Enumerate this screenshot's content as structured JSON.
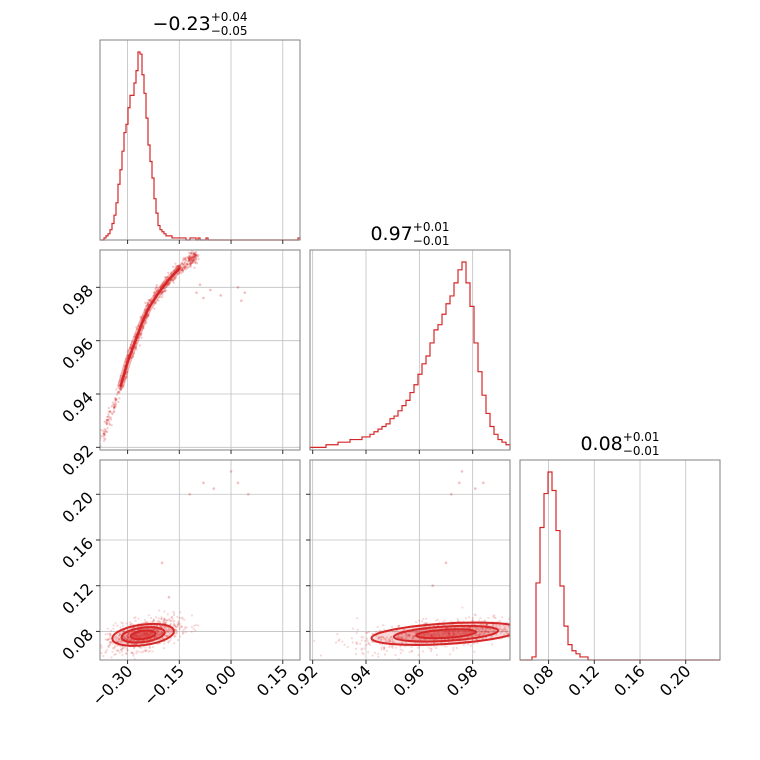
{
  "chart_data": {
    "type": "corner",
    "color": "#d62728",
    "grid": true,
    "titles": [
      {
        "main": "−0.23",
        "sup": "+0.04",
        "sub": "−0.05"
      },
      {
        "main": "0.97",
        "sup": "+0.01",
        "sub": "−0.01"
      },
      {
        "main": "0.08",
        "sup": "+0.01",
        "sub": "−0.01"
      }
    ],
    "params": [
      {
        "range": [
          -0.38,
          0.2
        ],
        "ticks": [
          -0.3,
          -0.15,
          0.0,
          0.15
        ],
        "tick_labels": [
          "−0.30",
          "−0.15",
          "0.00",
          "0.15"
        ]
      },
      {
        "range": [
          0.919,
          0.994
        ],
        "ticks": [
          0.92,
          0.94,
          0.96,
          0.98
        ],
        "tick_labels": [
          "0.92",
          "0.94",
          "0.96",
          "0.98"
        ]
      },
      {
        "range": [
          0.055,
          0.23
        ],
        "ticks": [
          0.08,
          0.12,
          0.16,
          0.2
        ],
        "tick_labels": [
          "0.08",
          "0.12",
          "0.16",
          "0.20"
        ]
      }
    ],
    "histograms": [
      {
        "edges_start": -0.38,
        "bin_width": 0.0058,
        "counts": [
          0,
          0,
          1,
          2,
          3,
          5,
          8,
          12,
          18,
          27,
          34,
          43,
          52,
          56,
          64,
          70,
          70,
          76,
          82,
          91,
          90,
          80,
          71,
          59,
          46,
          38,
          30,
          20,
          13,
          7,
          5,
          4,
          3,
          2,
          2,
          2,
          1,
          1,
          1,
          1,
          1,
          1,
          1,
          0,
          0,
          1,
          1,
          1,
          0,
          1,
          0,
          0,
          0,
          1,
          0,
          0,
          0,
          0,
          0,
          0,
          0,
          0,
          0,
          0,
          0,
          0,
          0,
          0,
          0,
          0,
          0,
          0,
          0,
          0,
          0,
          0,
          0,
          0,
          0,
          0,
          0,
          0,
          0,
          0,
          0,
          0,
          0,
          0,
          0,
          0,
          0,
          0,
          0,
          0,
          0,
          0,
          0,
          0,
          0,
          1
        ]
      },
      {
        "edges_start": 0.919,
        "bin_width": 0.0015,
        "counts": [
          1,
          1,
          1,
          1,
          2,
          2,
          2,
          3,
          3,
          3,
          4,
          4,
          4,
          5,
          5,
          6,
          7,
          8,
          9,
          10,
          12,
          13,
          15,
          17,
          19,
          22,
          25,
          29,
          33,
          36,
          41,
          46,
          48,
          52,
          56,
          59,
          64,
          69,
          72,
          64,
          55,
          41,
          30,
          21,
          14,
          9,
          6,
          4,
          3,
          2
        ]
      },
      {
        "edges_start": 0.055,
        "bin_width": 0.0035,
        "counts": [
          0,
          0,
          0,
          1,
          25,
          43,
          54,
          61,
          55,
          42,
          24,
          11,
          5,
          3,
          2,
          1,
          1,
          0,
          0,
          0,
          0,
          0,
          0,
          0,
          0,
          0,
          0,
          0,
          0,
          0,
          0,
          0,
          0,
          0,
          0,
          0,
          0,
          0,
          0,
          0,
          0,
          0,
          0,
          0,
          0,
          0,
          0,
          0,
          0,
          0
        ]
      }
    ],
    "pairs": [
      {
        "x": 0,
        "y": 1,
        "outliers": [
          [
            -0.09,
            0.981
          ],
          [
            -0.06,
            0.979
          ],
          [
            -0.03,
            0.977
          ],
          [
            0.02,
            0.98
          ],
          [
            0.04,
            0.978
          ],
          [
            -0.1,
            0.978
          ],
          [
            -0.08,
            0.976
          ],
          [
            0.03,
            0.975
          ]
        ],
        "ridge": [
          [
            -0.375,
            0.923
          ],
          [
            -0.35,
            0.932
          ],
          [
            -0.32,
            0.943
          ],
          [
            -0.3,
            0.952
          ],
          [
            -0.28,
            0.959
          ],
          [
            -0.26,
            0.966
          ],
          [
            -0.24,
            0.972
          ],
          [
            -0.21,
            0.978
          ],
          [
            -0.18,
            0.983
          ],
          [
            -0.15,
            0.987
          ],
          [
            -0.12,
            0.99
          ],
          [
            -0.1,
            0.992
          ]
        ]
      },
      {
        "x": 0,
        "y": 2,
        "outliers": [
          [
            -0.2,
            0.14
          ],
          [
            -0.12,
            0.2
          ],
          [
            -0.08,
            0.21
          ],
          [
            -0.05,
            0.205
          ],
          [
            0.0,
            0.22
          ],
          [
            0.02,
            0.21
          ],
          [
            0.05,
            0.2
          ],
          [
            -0.18,
            0.11
          ]
        ],
        "cluster": {
          "center": [
            -0.255,
            0.077
          ],
          "sx": 0.045,
          "sy": 0.006,
          "rho": 0.5
        }
      },
      {
        "x": 1,
        "y": 2,
        "outliers": [
          [
            0.972,
            0.2
          ],
          [
            0.975,
            0.21
          ],
          [
            0.976,
            0.22
          ],
          [
            0.981,
            0.205
          ],
          [
            0.984,
            0.21
          ],
          [
            0.97,
            0.14
          ],
          [
            0.965,
            0.12
          ]
        ],
        "cluster": {
          "center": [
            0.97,
            0.078
          ],
          "sx": 0.014,
          "sy": 0.006,
          "rho": 0.55
        }
      }
    ]
  }
}
